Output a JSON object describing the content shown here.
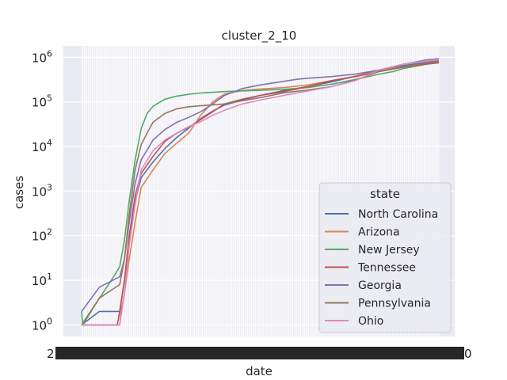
{
  "chart_data": {
    "type": "line",
    "title": "cluster_2_10",
    "xlabel": "date",
    "ylabel": "cases",
    "y_scale": "log",
    "ylim": [
      0.55,
      1800000
    ],
    "y_ticks": [
      {
        "value": 1,
        "label": "10",
        "exp": "0"
      },
      {
        "value": 10,
        "label": "10",
        "exp": "1"
      },
      {
        "value": 100,
        "label": "10",
        "exp": "2"
      },
      {
        "value": 1000,
        "label": "10",
        "exp": "3"
      },
      {
        "value": 10000,
        "label": "10",
        "exp": "4"
      },
      {
        "value": 100000,
        "label": "10",
        "exp": "5"
      },
      {
        "value": 1000000,
        "label": "10",
        "exp": "6"
      }
    ],
    "x_range": [
      0,
      300
    ],
    "x_tick_count": 270,
    "x_tick_text_left": "2",
    "x_tick_text_right": "0",
    "grid": true,
    "legend": {
      "title": "state",
      "placement": "lower-right"
    },
    "series": [
      {
        "name": "North Carolina",
        "color": "#4c72b0",
        "points": [
          [
            0,
            1
          ],
          [
            15,
            2
          ],
          [
            32,
            2
          ],
          [
            36,
            10
          ],
          [
            40,
            80
          ],
          [
            45,
            600
          ],
          [
            50,
            2000
          ],
          [
            60,
            4500
          ],
          [
            70,
            9000
          ],
          [
            80,
            16000
          ],
          [
            90,
            26000
          ],
          [
            100,
            42000
          ],
          [
            110,
            62000
          ],
          [
            120,
            85000
          ],
          [
            135,
            110000
          ],
          [
            150,
            140000
          ],
          [
            170,
            180000
          ],
          [
            190,
            220000
          ],
          [
            210,
            280000
          ],
          [
            230,
            380000
          ],
          [
            250,
            520000
          ],
          [
            270,
            650000
          ],
          [
            290,
            780000
          ],
          [
            300,
            830000
          ]
        ]
      },
      {
        "name": "Arizona",
        "color": "#dd8452",
        "points": [
          [
            0,
            1
          ],
          [
            32,
            1
          ],
          [
            33,
            2
          ],
          [
            36,
            5
          ],
          [
            40,
            30
          ],
          [
            45,
            200
          ],
          [
            50,
            1200
          ],
          [
            60,
            3000
          ],
          [
            70,
            7000
          ],
          [
            80,
            12000
          ],
          [
            90,
            20000
          ],
          [
            100,
            50000
          ],
          [
            110,
            100000
          ],
          [
            120,
            150000
          ],
          [
            135,
            180000
          ],
          [
            150,
            195000
          ],
          [
            170,
            210000
          ],
          [
            190,
            240000
          ],
          [
            210,
            300000
          ],
          [
            230,
            380000
          ],
          [
            250,
            500000
          ],
          [
            270,
            620000
          ],
          [
            290,
            700000
          ],
          [
            300,
            750000
          ]
        ]
      },
      {
        "name": "New Jersey",
        "color": "#55a868",
        "points": [
          [
            0,
            2
          ],
          [
            1,
            1
          ],
          [
            15,
            4
          ],
          [
            25,
            10
          ],
          [
            32,
            20
          ],
          [
            36,
            80
          ],
          [
            40,
            600
          ],
          [
            45,
            5000
          ],
          [
            50,
            25000
          ],
          [
            55,
            55000
          ],
          [
            60,
            80000
          ],
          [
            70,
            115000
          ],
          [
            80,
            135000
          ],
          [
            90,
            148000
          ],
          [
            100,
            158000
          ],
          [
            120,
            170000
          ],
          [
            150,
            182000
          ],
          [
            170,
            192000
          ],
          [
            190,
            210000
          ],
          [
            210,
            250000
          ],
          [
            230,
            320000
          ],
          [
            250,
            420000
          ],
          [
            262,
            480000
          ],
          [
            270,
            560000
          ],
          [
            290,
            700000
          ],
          [
            300,
            760000
          ]
        ]
      },
      {
        "name": "Tennessee",
        "color": "#c44e52",
        "points": [
          [
            0,
            1
          ],
          [
            15,
            1
          ],
          [
            30,
            1
          ],
          [
            32,
            2
          ],
          [
            33,
            3
          ],
          [
            36,
            10
          ],
          [
            40,
            100
          ],
          [
            45,
            800
          ],
          [
            50,
            2500
          ],
          [
            60,
            6000
          ],
          [
            70,
            13000
          ],
          [
            80,
            20000
          ],
          [
            90,
            27000
          ],
          [
            100,
            40000
          ],
          [
            110,
            60000
          ],
          [
            120,
            90000
          ],
          [
            135,
            115000
          ],
          [
            150,
            140000
          ],
          [
            170,
            170000
          ],
          [
            190,
            220000
          ],
          [
            210,
            300000
          ],
          [
            230,
            370000
          ],
          [
            250,
            480000
          ],
          [
            270,
            600000
          ],
          [
            290,
            720000
          ],
          [
            300,
            760000
          ]
        ]
      },
      {
        "name": "Georgia",
        "color": "#8172b2",
        "points": [
          [
            0,
            2
          ],
          [
            15,
            7
          ],
          [
            32,
            12
          ],
          [
            36,
            30
          ],
          [
            40,
            200
          ],
          [
            45,
            1500
          ],
          [
            50,
            5000
          ],
          [
            60,
            14000
          ],
          [
            70,
            24000
          ],
          [
            80,
            35000
          ],
          [
            90,
            45000
          ],
          [
            100,
            60000
          ],
          [
            110,
            90000
          ],
          [
            120,
            140000
          ],
          [
            135,
            200000
          ],
          [
            150,
            240000
          ],
          [
            170,
            290000
          ],
          [
            180,
            320000
          ],
          [
            190,
            340000
          ],
          [
            210,
            370000
          ],
          [
            230,
            420000
          ],
          [
            250,
            520000
          ],
          [
            270,
            700000
          ],
          [
            290,
            880000
          ],
          [
            300,
            930000
          ]
        ]
      },
      {
        "name": "Pennsylvania",
        "color": "#937860",
        "points": [
          [
            0,
            1
          ],
          [
            15,
            4
          ],
          [
            32,
            8
          ],
          [
            36,
            30
          ],
          [
            40,
            300
          ],
          [
            45,
            3000
          ],
          [
            50,
            11000
          ],
          [
            55,
            20000
          ],
          [
            60,
            35000
          ],
          [
            70,
            55000
          ],
          [
            80,
            70000
          ],
          [
            90,
            78000
          ],
          [
            100,
            82000
          ],
          [
            120,
            90000
          ],
          [
            150,
            125000
          ],
          [
            170,
            160000
          ],
          [
            190,
            185000
          ],
          [
            210,
            220000
          ],
          [
            230,
            310000
          ],
          [
            250,
            480000
          ],
          [
            270,
            620000
          ],
          [
            290,
            750000
          ],
          [
            300,
            800000
          ]
        ]
      },
      {
        "name": "Ohio",
        "color": "#da8bc3",
        "points": [
          [
            0,
            1
          ],
          [
            15,
            1
          ],
          [
            32,
            1
          ],
          [
            36,
            5
          ],
          [
            40,
            60
          ],
          [
            45,
            500
          ],
          [
            50,
            3000
          ],
          [
            60,
            8000
          ],
          [
            70,
            14000
          ],
          [
            80,
            20000
          ],
          [
            90,
            28000
          ],
          [
            100,
            36000
          ],
          [
            110,
            50000
          ],
          [
            120,
            65000
          ],
          [
            135,
            90000
          ],
          [
            150,
            110000
          ],
          [
            170,
            140000
          ],
          [
            190,
            175000
          ],
          [
            210,
            220000
          ],
          [
            230,
            300000
          ],
          [
            250,
            520000
          ],
          [
            270,
            700000
          ],
          [
            290,
            830000
          ],
          [
            300,
            880000
          ]
        ]
      }
    ]
  }
}
